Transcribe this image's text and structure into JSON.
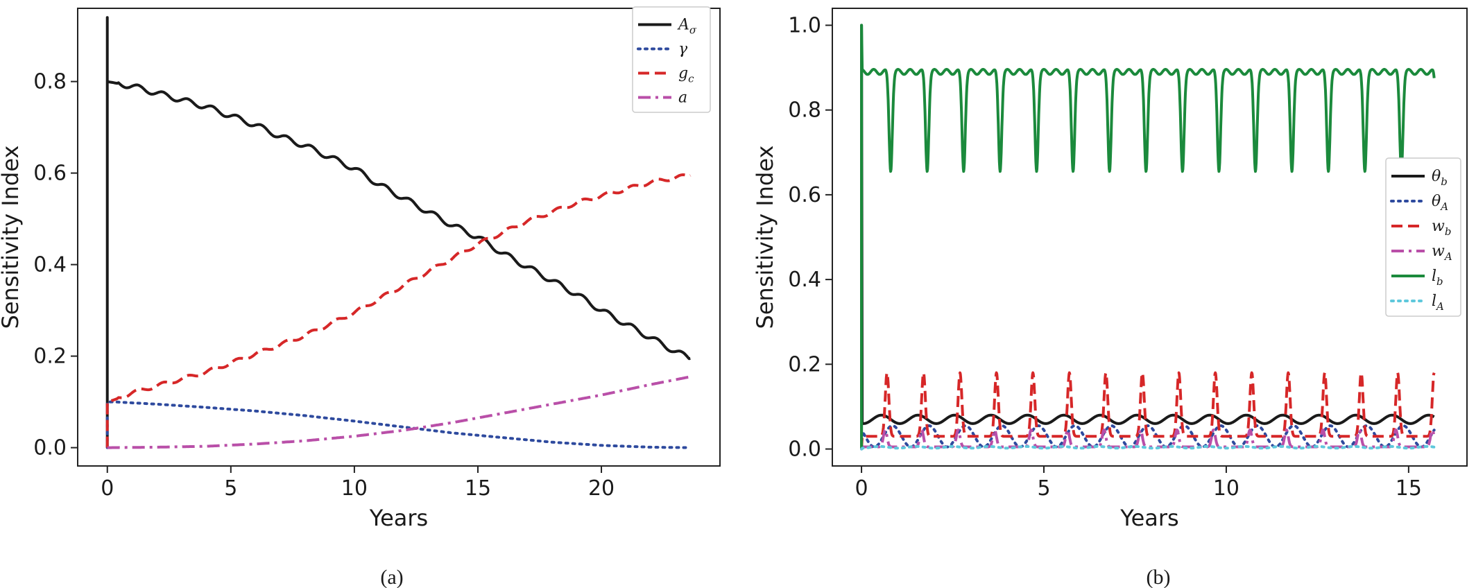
{
  "chart_data": [
    {
      "type": "line",
      "panel_label": "(a)",
      "xlabel": "Years",
      "ylabel": "Sensitivity Index",
      "xlim": [
        -1.2,
        24.8
      ],
      "ylim": [
        -0.04,
        0.96
      ],
      "xticks": [
        0,
        5,
        10,
        15,
        20
      ],
      "xtick_labels": [
        "0",
        "5",
        "10",
        "15",
        "20"
      ],
      "yticks": [
        0.0,
        0.2,
        0.4,
        0.6,
        0.8
      ],
      "ytick_labels": [
        "0.0",
        "0.2",
        "0.4",
        "0.6",
        "0.8"
      ],
      "legend_position": "top-right",
      "grid": false,
      "series": [
        {
          "name": "Aσ",
          "name_base": "A",
          "name_sub": "σ",
          "color": "#1a1a1a",
          "dash": "solid",
          "x": [
            0,
            0,
            0,
            0.5,
            1,
            2,
            3,
            4,
            5,
            6,
            7,
            8,
            9,
            10,
            11,
            12,
            13,
            14,
            15,
            16,
            17,
            18,
            19,
            20,
            21,
            22,
            23,
            23.6
          ],
          "y": [
            0,
            0.94,
            0.8,
            0.795,
            0.79,
            0.775,
            0.76,
            0.745,
            0.725,
            0.705,
            0.68,
            0.66,
            0.635,
            0.61,
            0.575,
            0.545,
            0.515,
            0.485,
            0.46,
            0.425,
            0.395,
            0.365,
            0.335,
            0.3,
            0.27,
            0.24,
            0.21,
            0.195
          ],
          "ripple": 0.006
        },
        {
          "name": "γ",
          "name_base": "γ",
          "name_sub": "",
          "color": "#2e4a9e",
          "dash": "dotted",
          "x": [
            0,
            0,
            0.3,
            2,
            4,
            6,
            8,
            10,
            12,
            14,
            16,
            18,
            20,
            22,
            23.6
          ],
          "y": [
            0,
            0.1,
            0.1,
            0.095,
            0.088,
            0.08,
            0.07,
            0.058,
            0.045,
            0.032,
            0.022,
            0.012,
            0.005,
            0.001,
            0.0
          ],
          "ripple": 0
        },
        {
          "name": "gc",
          "name_base": "g",
          "name_sub": "c",
          "color": "#d62728",
          "dash": "dashed",
          "x": [
            0,
            0,
            0.3,
            1,
            2,
            3,
            4,
            5,
            6,
            7,
            8,
            9,
            10,
            11,
            12,
            13,
            14,
            15,
            16,
            17,
            18,
            19,
            20,
            21,
            22,
            23,
            23.6
          ],
          "y": [
            0,
            0.1,
            0.105,
            0.12,
            0.135,
            0.15,
            0.165,
            0.185,
            0.205,
            0.225,
            0.245,
            0.27,
            0.295,
            0.325,
            0.355,
            0.385,
            0.415,
            0.445,
            0.47,
            0.495,
            0.515,
            0.535,
            0.55,
            0.565,
            0.58,
            0.59,
            0.595
          ],
          "ripple": 0.004
        },
        {
          "name": "a",
          "name_base": "a",
          "name_sub": "",
          "color": "#b94fa8",
          "dash": "dashdot",
          "x": [
            0,
            2,
            4,
            6,
            8,
            10,
            12,
            14,
            16,
            18,
            20,
            22,
            23.6
          ],
          "y": [
            0,
            0.001,
            0.003,
            0.008,
            0.015,
            0.025,
            0.038,
            0.055,
            0.075,
            0.095,
            0.115,
            0.138,
            0.155
          ],
          "ripple": 0
        }
      ]
    },
    {
      "type": "line",
      "panel_label": "(b)",
      "xlabel": "Years",
      "ylabel": "Sensitivity Index",
      "xlim": [
        -0.8,
        16.6
      ],
      "ylim": [
        -0.04,
        1.04
      ],
      "xticks": [
        0,
        5,
        10,
        15
      ],
      "xtick_labels": [
        "0",
        "5",
        "10",
        "15"
      ],
      "yticks": [
        0.0,
        0.2,
        0.4,
        0.6,
        0.8,
        1.0
      ],
      "ytick_labels": [
        "0.0",
        "0.2",
        "0.4",
        "0.6",
        "0.8",
        "1.0"
      ],
      "legend_position": "center-right",
      "grid": false,
      "series": [
        {
          "name": "θb",
          "name_base": "θ",
          "name_sub": "b",
          "color": "#1a1a1a",
          "dash": "solid",
          "x_end": 15.7,
          "initial_spike": 1.0,
          "base": 0.06,
          "amp": 0.02,
          "shape": "bump",
          "phase": 0.55
        },
        {
          "name": "θA",
          "name_base": "θ",
          "name_sub": "A",
          "color": "#2e4a9e",
          "dash": "dotted",
          "x_end": 15.7,
          "initial_spike": 0,
          "base": 0.005,
          "amp": 0.05,
          "shape": "bump",
          "phase": 0.85
        },
        {
          "name": "wb",
          "name_base": "w",
          "name_sub": "b",
          "color": "#d62728",
          "dash": "dashed",
          "x_end": 15.7,
          "initial_spike": 0,
          "base": 0.03,
          "amp": 0.15,
          "shape": "peak",
          "phase": 0.7
        },
        {
          "name": "wA",
          "name_base": "w",
          "name_sub": "A",
          "color": "#b94fa8",
          "dash": "dashdot",
          "x_end": 15.7,
          "initial_spike": 0,
          "base": 0.005,
          "amp": 0.04,
          "shape": "peak",
          "phase": 0.65
        },
        {
          "name": "lb",
          "name_base": "l",
          "name_sub": "b",
          "color": "#1b8a3c",
          "dash": "solid",
          "x_end": 15.7,
          "initial_spike": 1.0,
          "base": 0.89,
          "amp": -0.23,
          "shape": "dip",
          "phase": 0.8
        },
        {
          "name": "lA",
          "name_base": "l",
          "name_sub": "A",
          "color": "#5ec8dc",
          "dash": "dotted",
          "x_end": 15.7,
          "initial_spike": 0,
          "base": 0.002,
          "amp": 0.004,
          "shape": "bump",
          "phase": 0.5
        }
      ]
    }
  ]
}
